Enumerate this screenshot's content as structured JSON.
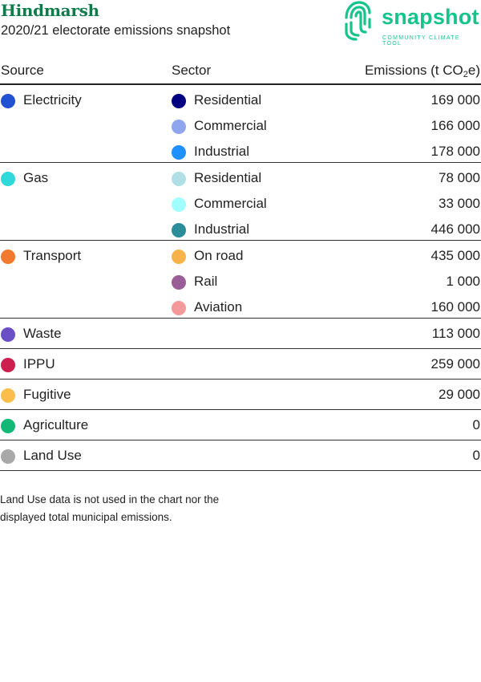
{
  "header": {
    "title": "Hindmarsh",
    "subtitle": "2020/21 electorate emissions snapshot"
  },
  "logo": {
    "word": "snapshot",
    "tagline": "COMMUNITY CLIMATE TOOL",
    "color": "#15c48a"
  },
  "table": {
    "col_source": "Source",
    "col_sector": "Sector",
    "col_emissions_pre": "Emissions (t CO",
    "col_emissions_sub": "2",
    "col_emissions_post": "e)",
    "groups": [
      {
        "source": "Electricity",
        "color": "#2251d1",
        "sectors": [
          {
            "name": "Residential",
            "color": "#000080",
            "value": "169 000"
          },
          {
            "name": "Commercial",
            "color": "#8fa6ee",
            "value": "166 000"
          },
          {
            "name": "Industrial",
            "color": "#1e90ff",
            "value": "178 000"
          }
        ]
      },
      {
        "source": "Gas",
        "color": "#2fd9d9",
        "sectors": [
          {
            "name": "Residential",
            "color": "#b0e0e6",
            "value": "78 000"
          },
          {
            "name": "Commercial",
            "color": "#a2ffff",
            "value": "33 000"
          },
          {
            "name": "Industrial",
            "color": "#2b8c9a",
            "value": "446 000"
          }
        ]
      },
      {
        "source": "Transport",
        "color": "#f27a2e",
        "sectors": [
          {
            "name": "On road",
            "color": "#f7b24a",
            "value": "435 000"
          },
          {
            "name": "Rail",
            "color": "#9a5e96",
            "value": "1 000"
          },
          {
            "name": "Aviation",
            "color": "#f59a9a",
            "value": "160 000"
          }
        ]
      },
      {
        "source": "Waste",
        "color": "#6a4fc7",
        "value": "113 000"
      },
      {
        "source": "IPPU",
        "color": "#cc1f4f",
        "value": "259 000"
      },
      {
        "source": "Fugitive",
        "color": "#fbbd4b",
        "value": "29 000"
      },
      {
        "source": "Agriculture",
        "color": "#12b876",
        "value": "0"
      },
      {
        "source": "Land Use",
        "color": "#a8a8a8",
        "value": "0"
      }
    ]
  },
  "note": {
    "line1": "Land Use data is not used in the chart nor the",
    "line2": "displayed total municipal emissions."
  }
}
